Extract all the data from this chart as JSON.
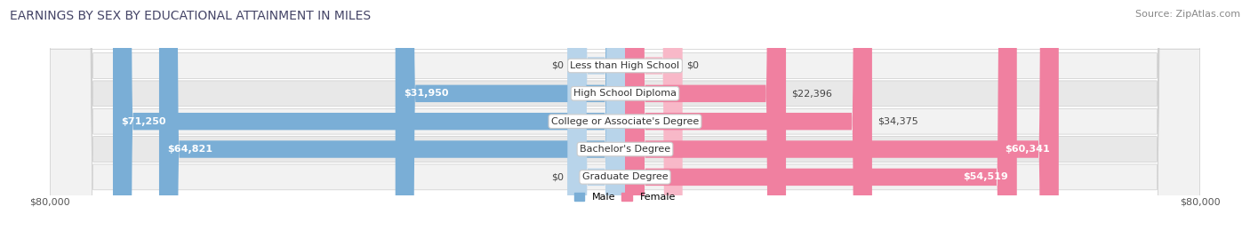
{
  "title": "EARNINGS BY SEX BY EDUCATIONAL ATTAINMENT IN MILES",
  "source": "Source: ZipAtlas.com",
  "categories": [
    "Less than High School",
    "High School Diploma",
    "College or Associate's Degree",
    "Bachelor's Degree",
    "Graduate Degree"
  ],
  "male_values": [
    0,
    31950,
    71250,
    64821,
    0
  ],
  "female_values": [
    0,
    22396,
    34375,
    60341,
    54519
  ],
  "male_color": "#7aaed6",
  "female_color": "#f080a0",
  "male_color_light": "#b8d4ea",
  "female_color_light": "#f8b8c8",
  "row_bg_color_odd": "#f2f2f2",
  "row_bg_color_even": "#e8e8e8",
  "max_value": 80000,
  "xlabel_left": "$80,000",
  "xlabel_right": "$80,000",
  "title_fontsize": 10,
  "source_fontsize": 8,
  "bar_height": 0.62,
  "bar_label_fontsize": 8,
  "cat_label_fontsize": 8,
  "legend_fontsize": 8
}
